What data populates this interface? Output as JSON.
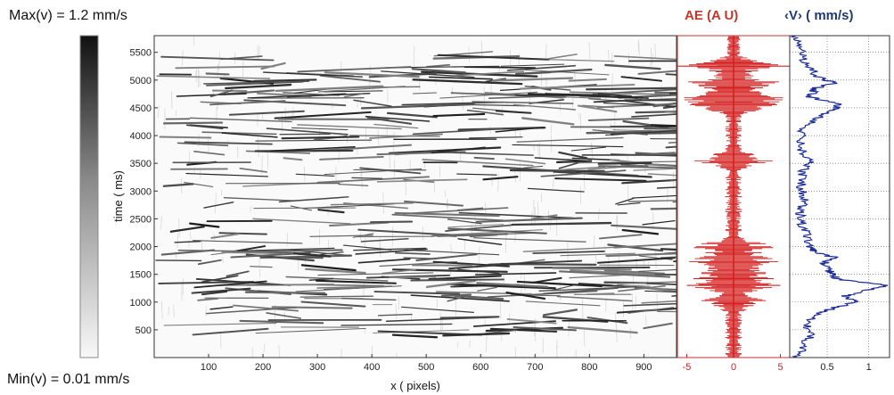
{
  "colorbar": {
    "max_label": "Max(v) = 1.2 mm/s",
    "min_label": "Min(v) = 0.01 mm/s"
  },
  "colors": {
    "ae": "#d42020",
    "velocity": "#1d2d9a",
    "ae_title": "#c0392b",
    "velocity_title": "#1f3a78"
  },
  "chart_data": [
    {
      "type": "heatmap",
      "xlabel": "x ( pixels)",
      "ylabel": "time ( ms)",
      "xlim": [
        0,
        960
      ],
      "ylim": [
        0,
        5800
      ],
      "x_ticks": [
        100,
        200,
        300,
        400,
        500,
        600,
        700,
        800,
        900
      ],
      "y_ticks": [
        500,
        1000,
        1500,
        2000,
        2500,
        3000,
        3500,
        4000,
        4500,
        5000,
        5500
      ],
      "colormap": "gray (white = low velocity, black = high velocity)",
      "value_range": [
        0.01,
        1.2
      ],
      "value_unit": "mm/s"
    },
    {
      "type": "line",
      "title": "AE (A U)",
      "orientation": "vertical (time on y axis)",
      "xlim": [
        -6,
        6
      ],
      "x_ticks": [
        -5,
        0,
        5
      ],
      "ylim": [
        0,
        5800
      ],
      "peak_bursts_time_ms": [
        5250,
        4950,
        4700,
        4550,
        3550,
        2000,
        1750,
        1500,
        1300,
        1000
      ]
    },
    {
      "type": "line",
      "title": "‹V› ( mm/s)",
      "orientation": "vertical (time on y axis)",
      "xlim": [
        0.05,
        1.25
      ],
      "x_ticks": [
        0.5,
        1
      ],
      "ylim": [
        0,
        5800
      ],
      "grid": true,
      "series": [
        {
          "time_ms": [
            0,
            200,
            400,
            600,
            800,
            900,
            1000,
            1100,
            1200,
            1300,
            1400,
            1500,
            1600,
            1700,
            1800,
            1900,
            2000,
            2200,
            2400,
            2600,
            2800,
            3000,
            3200,
            3400,
            3550,
            3700,
            3900,
            4100,
            4300,
            4450,
            4550,
            4700,
            4850,
            4950,
            5050,
            5200,
            5400,
            5600,
            5800
          ],
          "values": [
            0.15,
            0.2,
            0.3,
            0.25,
            0.4,
            0.6,
            0.85,
            0.7,
            0.95,
            1.25,
            0.65,
            0.55,
            0.5,
            0.45,
            0.6,
            0.35,
            0.3,
            0.25,
            0.2,
            0.18,
            0.22,
            0.2,
            0.18,
            0.22,
            0.3,
            0.2,
            0.18,
            0.2,
            0.35,
            0.55,
            0.65,
            0.3,
            0.35,
            0.6,
            0.4,
            0.3,
            0.2,
            0.18,
            0.12
          ]
        }
      ]
    }
  ]
}
